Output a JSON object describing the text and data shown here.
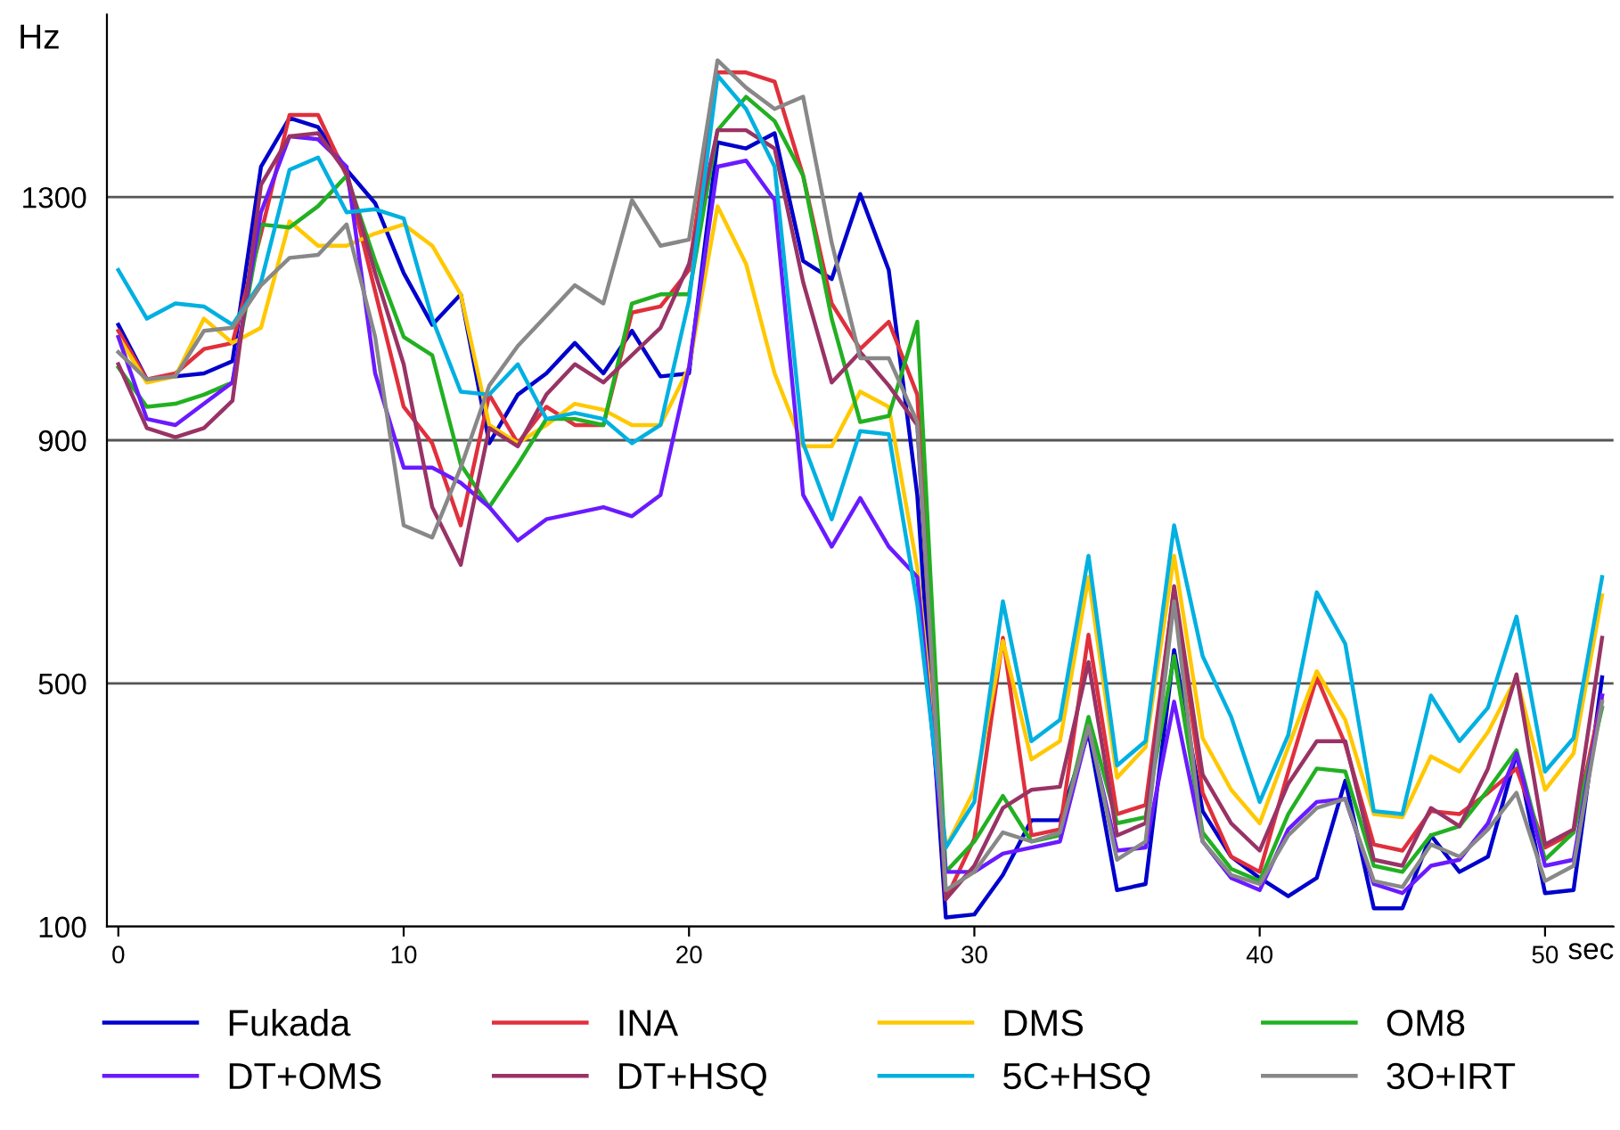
{
  "chart_data": {
    "type": "line",
    "ylabel": "Hz",
    "xlabel": "sec",
    "x": [
      0,
      1,
      2,
      3,
      4,
      5,
      6,
      7,
      8,
      9,
      10,
      11,
      12,
      13,
      14,
      15,
      16,
      17,
      18,
      19,
      20,
      21,
      22,
      23,
      24,
      25,
      26,
      27,
      28,
      29,
      30,
      31,
      32,
      33,
      34,
      35,
      36,
      37,
      38,
      39,
      40,
      41,
      42,
      43,
      44,
      45,
      46,
      47,
      48,
      49,
      50,
      51,
      52
    ],
    "xlim": [
      -0.4,
      52.4
    ],
    "xticks": [
      0,
      10,
      20,
      30,
      40,
      50
    ],
    "ylim": [
      100,
      1600
    ],
    "yticks": [
      100,
      500,
      900,
      1300
    ],
    "grid": "y",
    "legend": "bottom",
    "marker": "none",
    "line_style": "solid",
    "series": [
      {
        "name": "Fukada",
        "color": "#0000cc",
        "values": [
          1090,
          1000,
          1005,
          1010,
          1030,
          1350,
          1430,
          1415,
          1345,
          1290,
          1175,
          1090,
          1140,
          895,
          975,
          1010,
          1060,
          1010,
          1080,
          1005,
          1010,
          1390,
          1380,
          1405,
          1195,
          1165,
          1305,
          1180,
          810,
          115,
          120,
          185,
          275,
          275,
          420,
          160,
          170,
          555,
          290,
          215,
          180,
          150,
          180,
          340,
          130,
          130,
          250,
          190,
          215,
          385,
          155,
          160,
          510
        ]
      },
      {
        "name": "INA",
        "color": "#e0303c",
        "values": [
          1080,
          1000,
          1010,
          1050,
          1060,
          1240,
          1435,
          1435,
          1335,
          1145,
          955,
          895,
          760,
          975,
          895,
          955,
          925,
          925,
          1110,
          1120,
          1180,
          1505,
          1505,
          1490,
          1335,
          1125,
          1050,
          1095,
          975,
          145,
          245,
          575,
          250,
          260,
          580,
          285,
          300,
          655,
          320,
          215,
          190,
          355,
          510,
          400,
          235,
          225,
          290,
          285,
          320,
          360,
          230,
          255,
          480
        ]
      },
      {
        "name": "DMS",
        "color": "#ffc800",
        "values": [
          1070,
          995,
          1005,
          1100,
          1060,
          1085,
          1260,
          1220,
          1220,
          1240,
          1255,
          1220,
          1140,
          925,
          895,
          925,
          960,
          950,
          925,
          925,
          1020,
          1285,
          1190,
          1010,
          890,
          890,
          980,
          955,
          690,
          230,
          325,
          570,
          375,
          405,
          675,
          345,
          395,
          710,
          410,
          325,
          270,
          395,
          520,
          440,
          285,
          280,
          380,
          355,
          420,
          510,
          325,
          385,
          645
        ]
      },
      {
        "name": "OM8",
        "color": "#22b022",
        "values": [
          1020,
          955,
          960,
          975,
          995,
          1255,
          1250,
          1285,
          1335,
          1195,
          1070,
          1040,
          860,
          790,
          860,
          935,
          935,
          925,
          1125,
          1140,
          1140,
          1410,
          1465,
          1425,
          1335,
          1100,
          930,
          940,
          1095,
          190,
          240,
          315,
          240,
          250,
          445,
          270,
          280,
          545,
          255,
          195,
          175,
          285,
          360,
          355,
          200,
          190,
          250,
          265,
          325,
          390,
          210,
          255,
          460
        ]
      },
      {
        "name": "DT+OMS",
        "color": "#6a1aff",
        "values": [
          1070,
          935,
          925,
          960,
          995,
          1275,
          1400,
          1395,
          1350,
          1010,
          855,
          855,
          830,
          790,
          735,
          770,
          780,
          790,
          775,
          810,
          1020,
          1350,
          1360,
          1295,
          810,
          725,
          805,
          725,
          675,
          190,
          190,
          220,
          230,
          240,
          425,
          225,
          230,
          470,
          240,
          180,
          160,
          260,
          305,
          310,
          170,
          155,
          200,
          210,
          270,
          385,
          200,
          210,
          480
        ]
      },
      {
        "name": "DT+HSQ",
        "color": "#993366",
        "values": [
          1025,
          920,
          905,
          920,
          965,
          1320,
          1400,
          1405,
          1340,
          1175,
          1025,
          790,
          695,
          920,
          890,
          975,
          1025,
          995,
          1040,
          1085,
          1190,
          1410,
          1410,
          1380,
          1160,
          995,
          1045,
          990,
          925,
          145,
          200,
          295,
          325,
          330,
          535,
          250,
          270,
          660,
          350,
          270,
          225,
          335,
          405,
          405,
          210,
          200,
          295,
          265,
          360,
          515,
          235,
          260,
          575
        ]
      },
      {
        "name": "5C+HSQ",
        "color": "#00b0e0",
        "values": [
          1180,
          1100,
          1125,
          1120,
          1090,
          1160,
          1345,
          1365,
          1275,
          1280,
          1265,
          1100,
          980,
          975,
          1025,
          935,
          945,
          935,
          895,
          925,
          1130,
          1500,
          1445,
          1350,
          895,
          770,
          915,
          910,
          630,
          230,
          305,
          635,
          405,
          440,
          710,
          365,
          405,
          760,
          545,
          445,
          305,
          415,
          650,
          565,
          290,
          285,
          480,
          405,
          460,
          610,
          355,
          410,
          675
        ]
      },
      {
        "name": "3O+IRT",
        "color": "#888888",
        "values": [
          1045,
          1000,
          1005,
          1080,
          1085,
          1155,
          1200,
          1205,
          1255,
          1070,
          760,
          740,
          855,
          990,
          1055,
          1105,
          1155,
          1125,
          1295,
          1220,
          1230,
          1525,
          1480,
          1445,
          1465,
          1225,
          1035,
          1035,
          930,
          160,
          190,
          255,
          240,
          255,
          430,
          210,
          240,
          635,
          240,
          185,
          170,
          250,
          295,
          310,
          175,
          165,
          235,
          215,
          260,
          320,
          175,
          200,
          470
        ]
      }
    ]
  }
}
